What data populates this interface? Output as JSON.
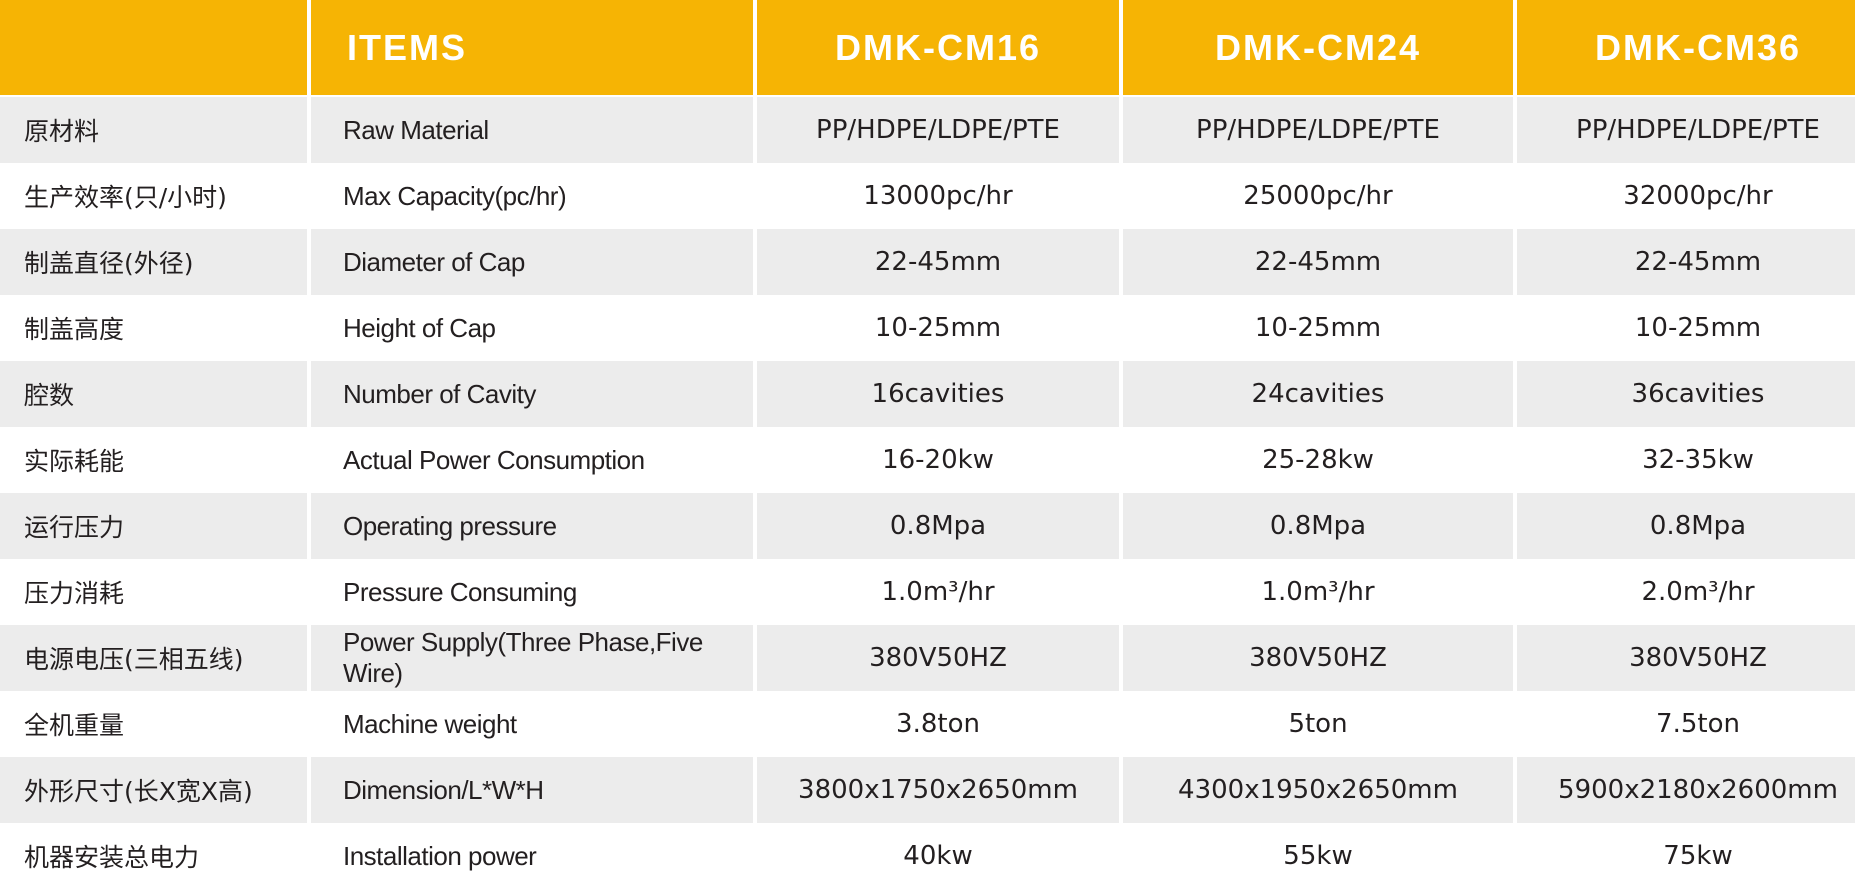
{
  "colors": {
    "header_bg": "#f6b404",
    "header_text": "#ffffff",
    "stripe": "#ececec"
  },
  "header": {
    "blank": "",
    "items": "ITEMS",
    "models": [
      "DMK-CM16",
      "DMK-CM24",
      "DMK-CM36"
    ]
  },
  "rows": [
    {
      "cn": "原材料",
      "en": "Raw Material",
      "values": [
        "PP/HDPE/LDPE/PTE",
        "PP/HDPE/LDPE/PTE",
        "PP/HDPE/LDPE/PTE"
      ]
    },
    {
      "cn": "生产效率(只/小时)",
      "en": "Max Capacity(pc/hr)",
      "values": [
        "13000pc/hr",
        "25000pc/hr",
        "32000pc/hr"
      ]
    },
    {
      "cn": "制盖直径(外径)",
      "en": "Diameter of Cap",
      "values": [
        "22-45mm",
        "22-45mm",
        "22-45mm"
      ]
    },
    {
      "cn": "制盖高度",
      "en": "Height of Cap",
      "values": [
        "10-25mm",
        "10-25mm",
        "10-25mm"
      ]
    },
    {
      "cn": "腔数",
      "en": "Number of Cavity",
      "values": [
        "16cavities",
        "24cavities",
        "36cavities"
      ]
    },
    {
      "cn": "实际耗能",
      "en": "Actual Power Consumption",
      "values": [
        "16-20kw",
        "25-28kw",
        "32-35kw"
      ]
    },
    {
      "cn": "运行压力",
      "en": "Operating pressure",
      "values": [
        "0.8Mpa",
        "0.8Mpa",
        "0.8Mpa"
      ]
    },
    {
      "cn": "压力消耗",
      "en": "Pressure Consuming",
      "values": [
        "1.0m³/hr",
        "1.0m³/hr",
        "2.0m³/hr"
      ]
    },
    {
      "cn": "电源电压(三相五线)",
      "en": "Power Supply(Three Phase,Five Wire)",
      "values": [
        "380V50HZ",
        "380V50HZ",
        "380V50HZ"
      ]
    },
    {
      "cn": "全机重量",
      "en": "Machine weight",
      "values": [
        "3.8ton",
        "5ton",
        "7.5ton"
      ]
    },
    {
      "cn": "外形尺寸(长X宽X高)",
      "en": "Dimension/L*W*H",
      "values": [
        "3800x1750x2650mm",
        "4300x1950x2650mm",
        "5900x2180x2600mm"
      ]
    },
    {
      "cn": "机器安装总电力",
      "en": "Installation power",
      "values": [
        "40kw",
        "55kw",
        "75kw"
      ]
    }
  ]
}
